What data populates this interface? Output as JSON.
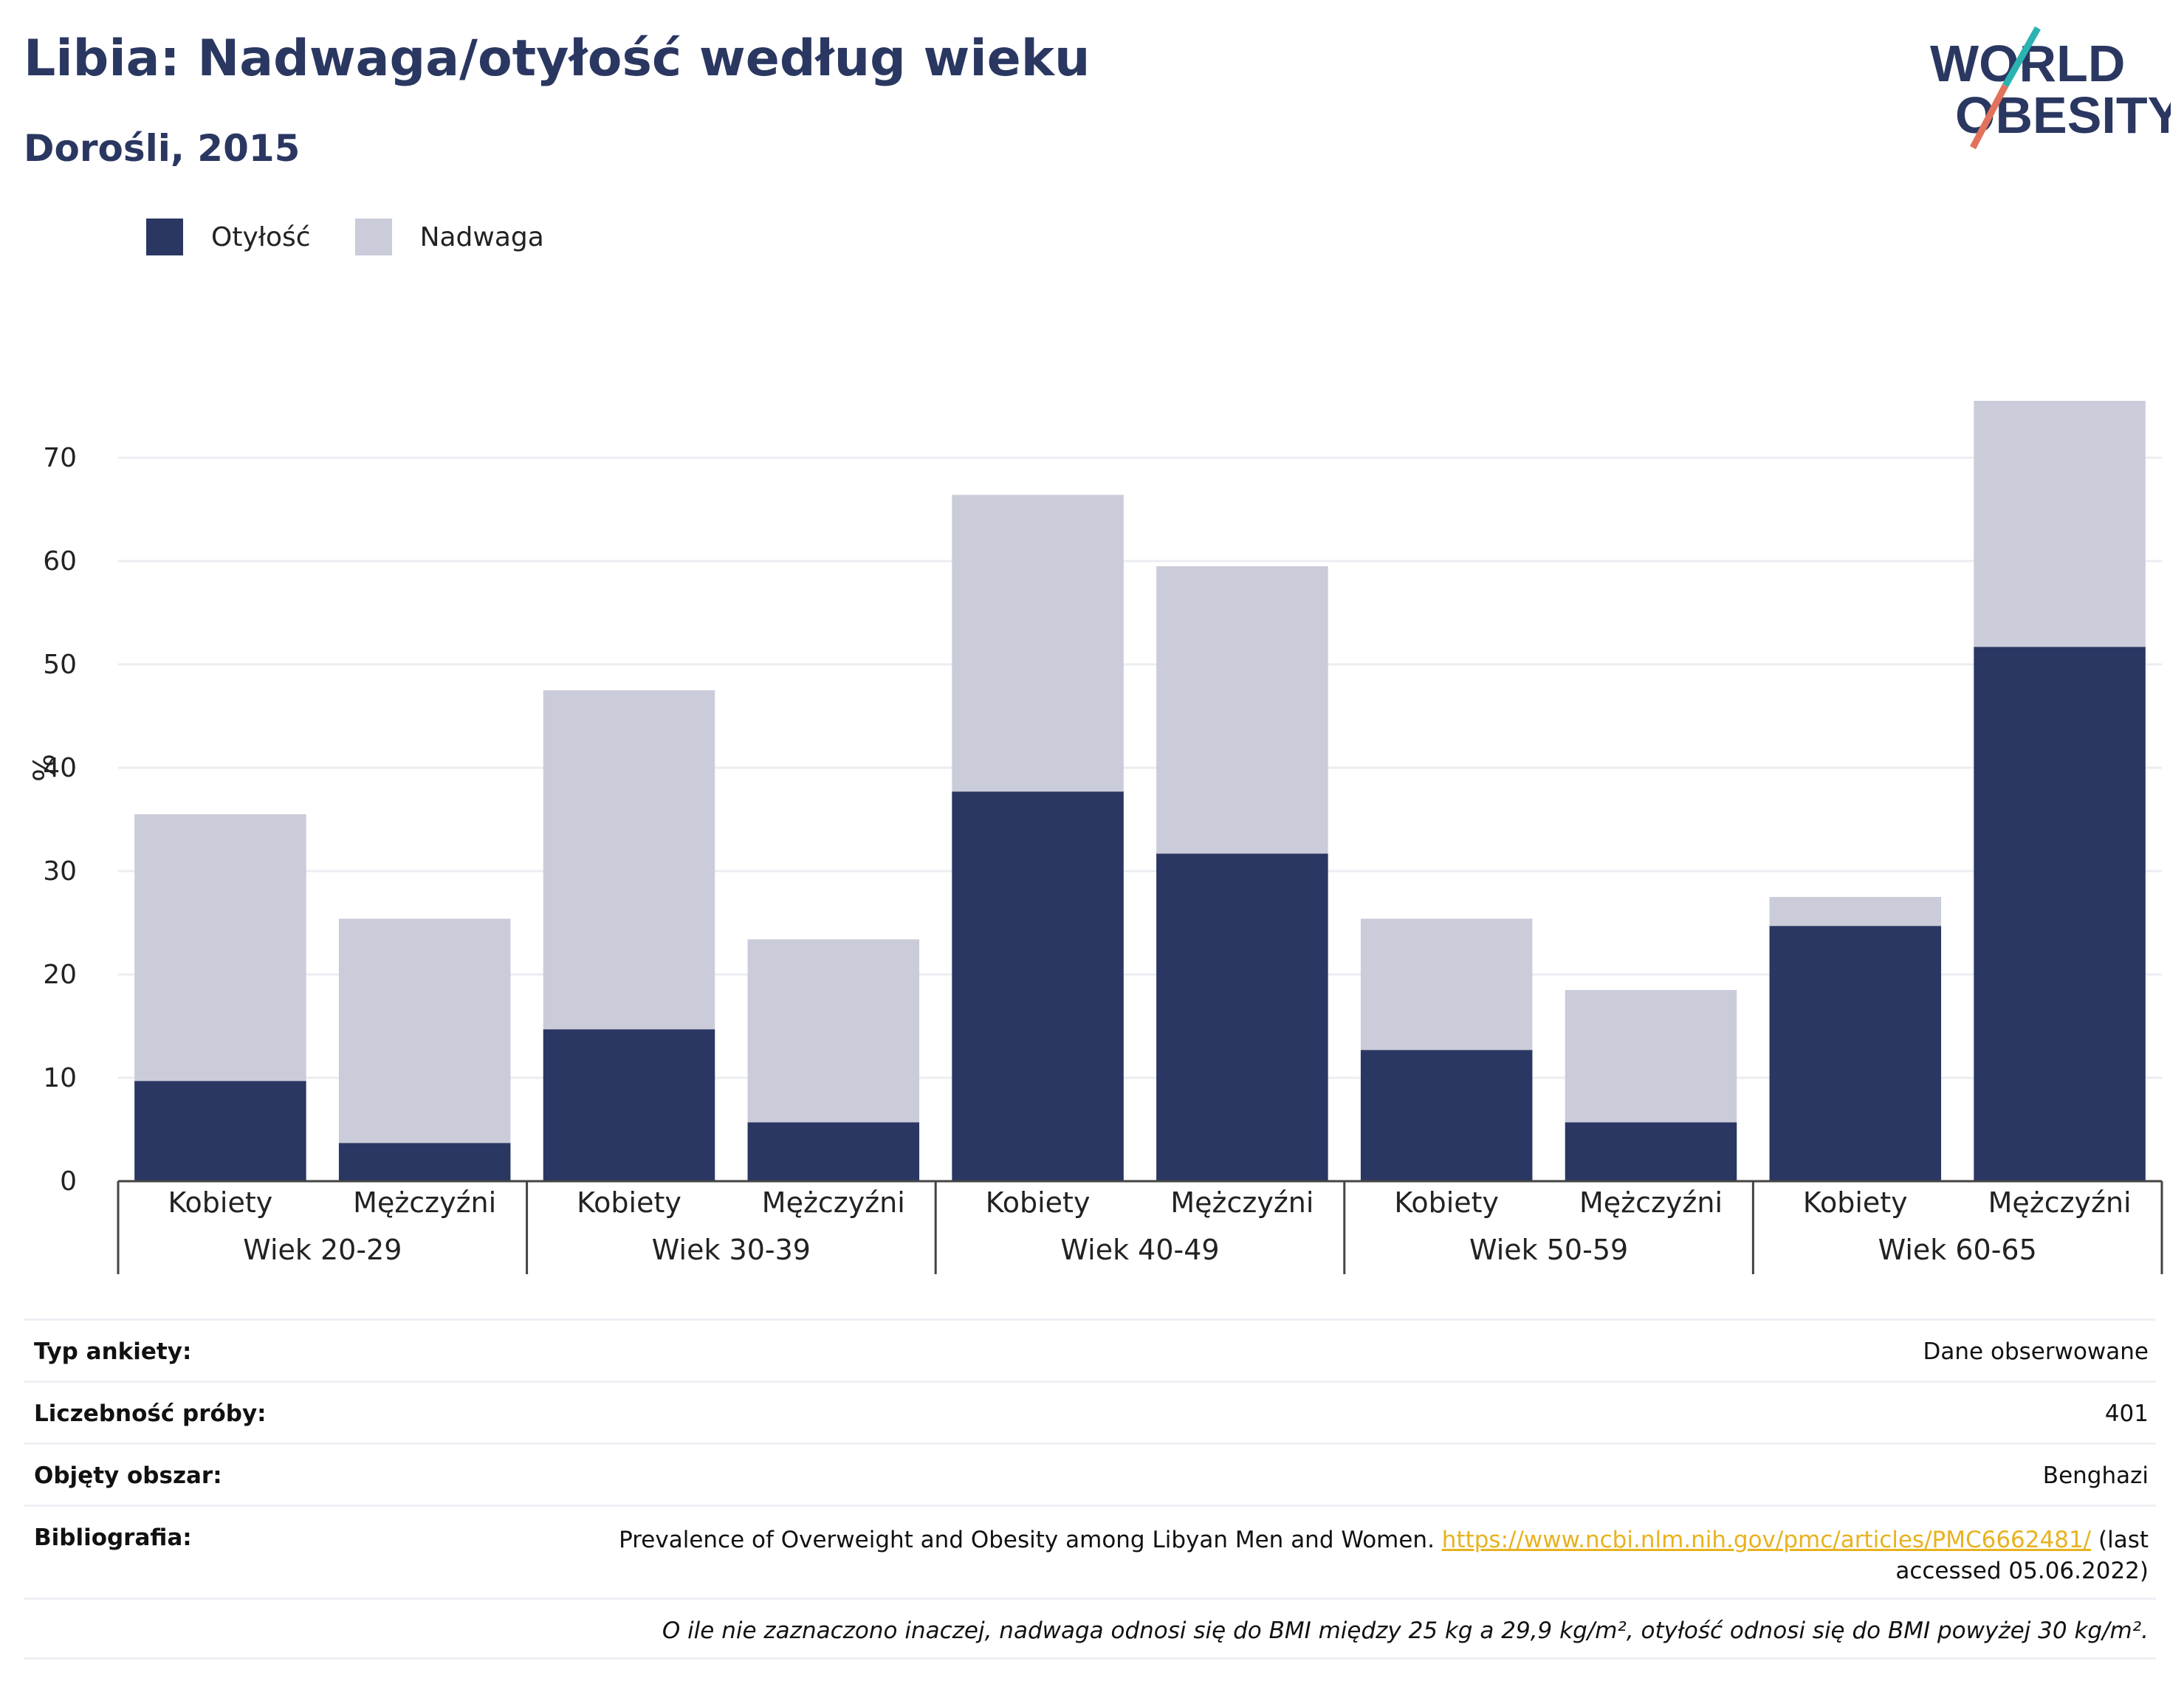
{
  "header": {
    "title": "Libia: Nadwaga/otyłość według wieku",
    "subtitle": "Dorośli, 2015"
  },
  "logo": {
    "line1": "WORLD",
    "line2": "OBESITY"
  },
  "colors": {
    "obesity": "#2a3763",
    "overweight": "#cbccd9",
    "title": "#2a3761",
    "link": "#e8b21f",
    "accent_teal": "#2ab3b1",
    "accent_coral": "#e2725b"
  },
  "chart_data": {
    "type": "bar",
    "stacked": true,
    "ylabel": "%",
    "ylim": [
      0,
      75
    ],
    "yticks": [
      0,
      10,
      20,
      30,
      40,
      50,
      60,
      70
    ],
    "grid": true,
    "legend_position": "top-left",
    "groups": [
      "Wiek 20-29",
      "Wiek 30-39",
      "Wiek 40-49",
      "Wiek 50-59",
      "Wiek 60-65"
    ],
    "categories": [
      "Kobiety",
      "Mężczyźni",
      "Kobiety",
      "Mężczyźni",
      "Kobiety",
      "Mężczyźni",
      "Kobiety",
      "Mężczyźni",
      "Kobiety",
      "Mężczyźni"
    ],
    "series": [
      {
        "name": "Otyłość",
        "values": [
          9.7,
          3.7,
          14.7,
          5.7,
          37.7,
          31.7,
          12.7,
          5.7,
          24.7,
          51.7
        ]
      },
      {
        "name": "Nadwaga",
        "values": [
          25.8,
          21.7,
          32.8,
          17.7,
          28.7,
          27.8,
          12.7,
          12.8,
          2.8,
          23.8
        ]
      }
    ]
  },
  "info": {
    "survey_type_label": "Typ ankiety:",
    "survey_type_value": "Dane obserwowane",
    "sample_size_label": "Liczebność próby:",
    "sample_size_value": "401",
    "area_label": "Objęty obszar:",
    "area_value": "Benghazi",
    "bibliography_label": "Bibliografia:",
    "bibliography_text": "Prevalence of Overweight and Obesity among Libyan Men and Women.",
    "bibliography_link": "https://www.ncbi.nlm.nih.gov/pmc/articles/PMC6662481/",
    "bibliography_suffix_line1": "(last",
    "bibliography_suffix_line2": "accessed 05.06.2022)",
    "note": "O ile nie zaznaczono inaczej, nadwaga odnosi się do BMI między 25 kg a 29,9 kg/m², otyłość odnosi się do BMI powyżej 30 kg/m²."
  }
}
